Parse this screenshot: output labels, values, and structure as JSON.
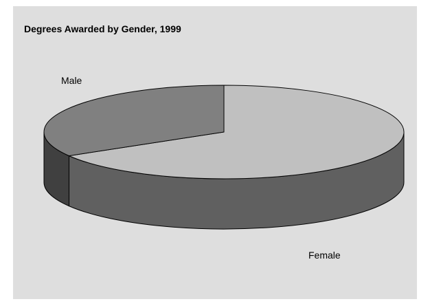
{
  "chart_data": {
    "type": "pie",
    "title": "Degrees Awarded by Gender, 1999",
    "categories": [
      "Female",
      "Male"
    ],
    "values": [
      66.5,
      33.5
    ],
    "unit": "percent",
    "three_d": true,
    "legend": "none",
    "colors": {
      "background": "#dedede",
      "female_top": "#c0c0c0",
      "female_side": "#606060",
      "male_top": "#808080",
      "male_side": "#404040",
      "outline": "#000000"
    }
  }
}
